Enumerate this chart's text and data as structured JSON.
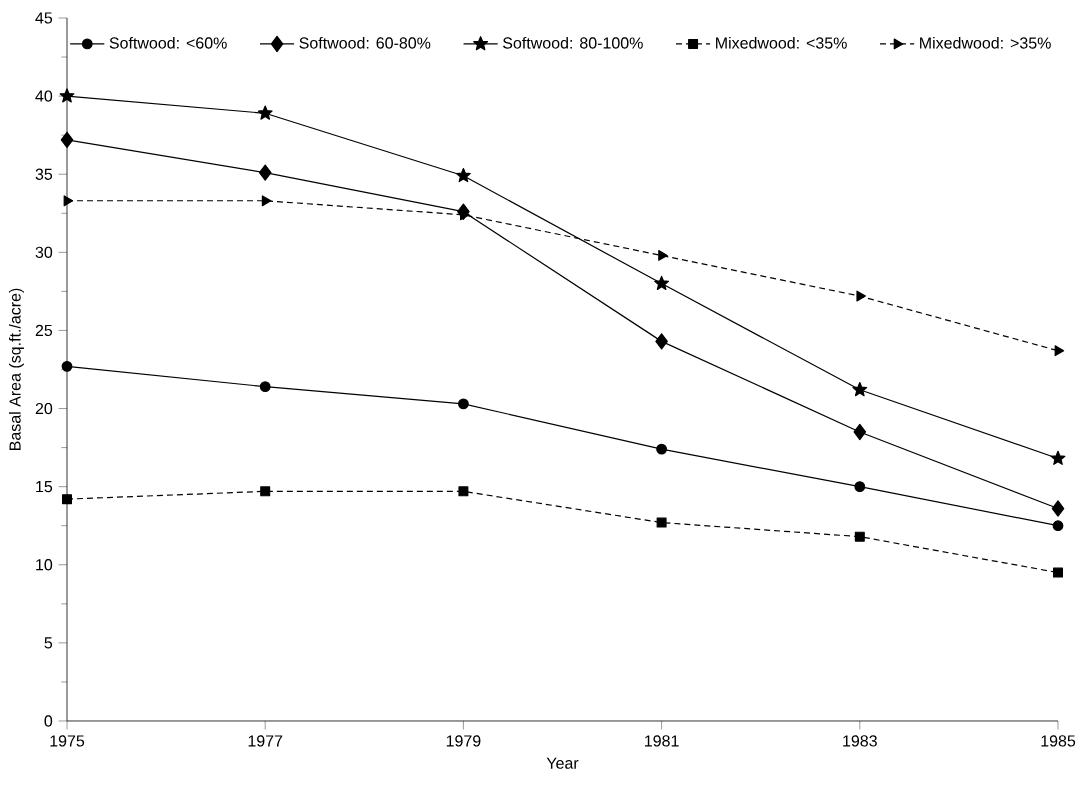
{
  "chart_data": {
    "type": "line",
    "xlabel": "Year",
    "ylabel": "Basal Area (sq.ft./acre)",
    "x": [
      1975,
      1977,
      1979,
      1981,
      1983,
      1985
    ],
    "xlim": [
      1975,
      1985
    ],
    "xticks": [
      1975,
      1977,
      1979,
      1981,
      1983,
      1985
    ],
    "ylim": [
      0,
      45
    ],
    "yticks": [
      0,
      5,
      10,
      15,
      20,
      25,
      30,
      35,
      40,
      45
    ],
    "grid": false,
    "legend": "top",
    "series": [
      {
        "name": "Softwood: <60%",
        "color": "#000000",
        "marker": "circle",
        "line_style": "solid",
        "values": [
          22.7,
          21.4,
          20.3,
          17.4,
          15.0,
          12.5
        ]
      },
      {
        "name": "Softwood: 60-80%",
        "color": "#000000",
        "marker": "diamond",
        "line_style": "solid",
        "values": [
          37.2,
          35.1,
          32.6,
          24.3,
          18.5,
          13.6
        ]
      },
      {
        "name": "Softwood: 80-100%",
        "color": "#000000",
        "marker": "star",
        "line_style": "solid",
        "values": [
          40.0,
          38.9,
          34.9,
          28.0,
          21.2,
          16.8
        ]
      },
      {
        "name": "Mixedwood: <35%",
        "color": "#000000",
        "marker": "square",
        "line_style": "dashed",
        "values": [
          14.2,
          14.7,
          14.7,
          12.7,
          11.8,
          9.5
        ]
      },
      {
        "name": "Mixedwood: >35%",
        "color": "#000000",
        "marker": "triangle",
        "line_style": "dashed",
        "values": [
          33.3,
          33.3,
          32.4,
          29.8,
          27.2,
          23.7
        ]
      }
    ]
  }
}
